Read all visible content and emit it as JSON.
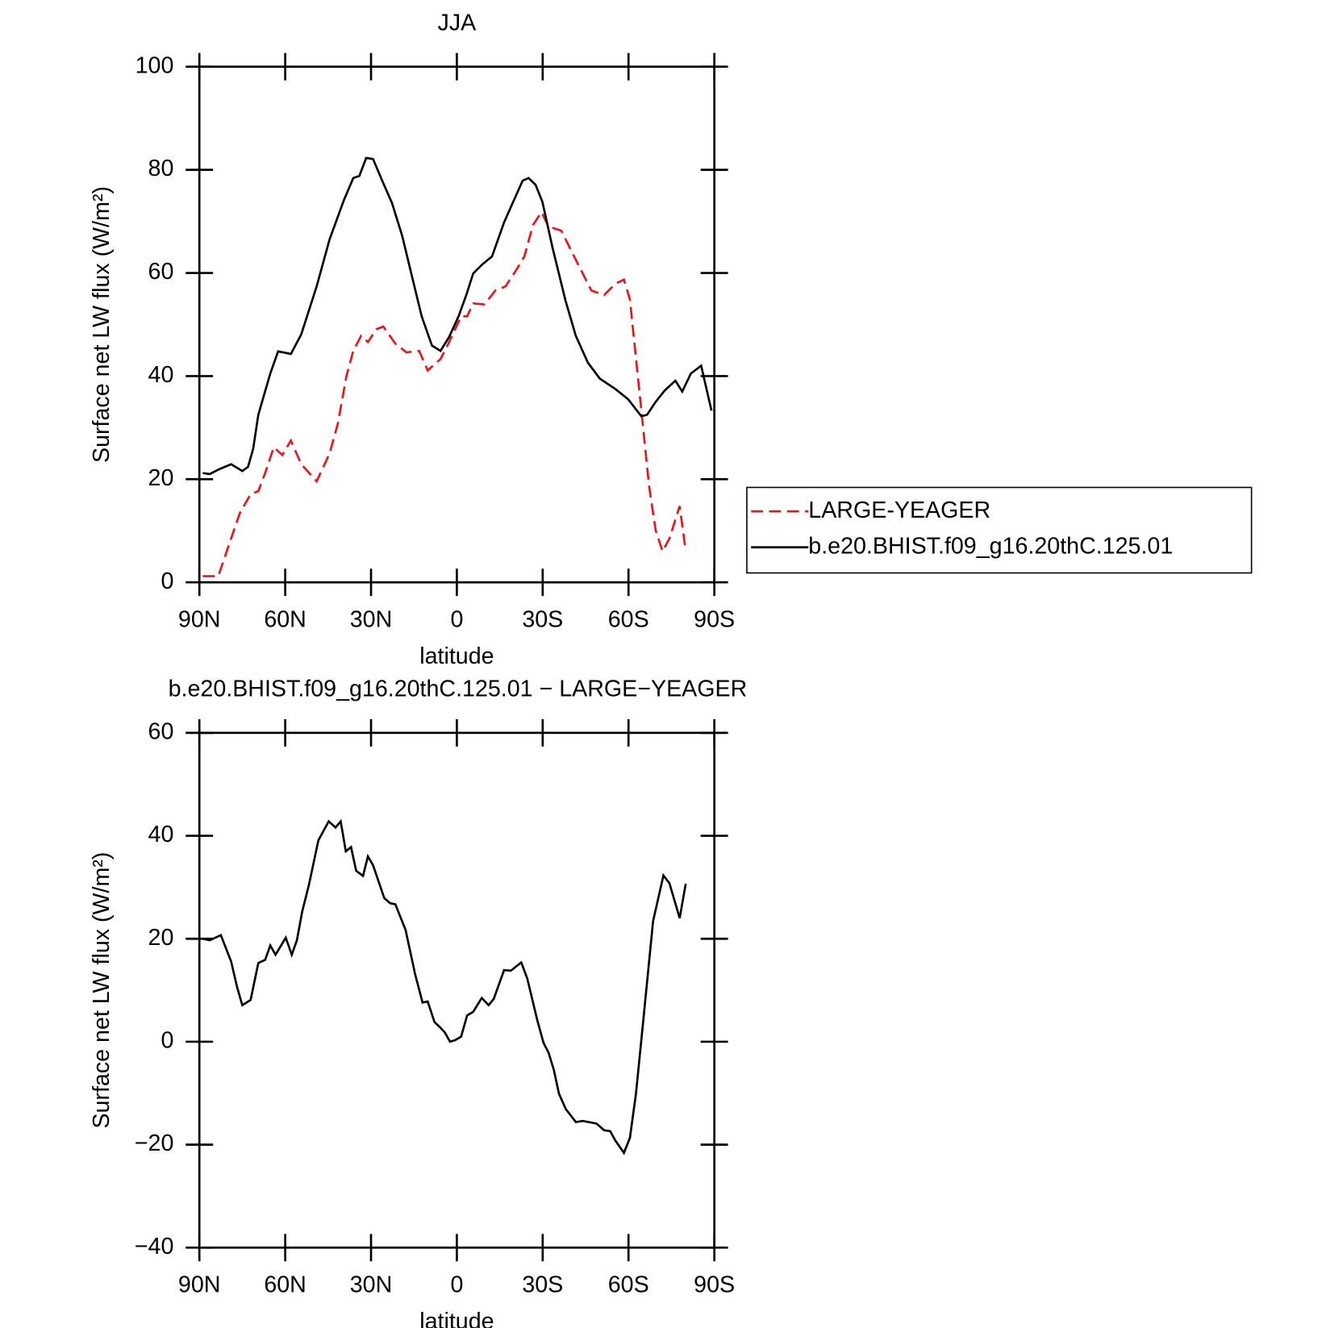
{
  "chart_data": [
    {
      "type": "line",
      "title": "JJA",
      "xlabel": "latitude",
      "ylabel": "Surface net LW flux (W/m²)",
      "xlim": [
        90,
        -90
      ],
      "ylim": [
        0,
        100
      ],
      "xticks": [
        {
          "value": 90,
          "label": "90N"
        },
        {
          "value": 60,
          "label": "60N"
        },
        {
          "value": 30,
          "label": "30N"
        },
        0,
        {
          "value": -30,
          "label": "30S"
        },
        {
          "value": -60,
          "label": "60S"
        },
        {
          "value": -90,
          "label": "90S"
        }
      ],
      "yticks": [
        0,
        20,
        40,
        60,
        80,
        100
      ],
      "legend": "right",
      "series": [
        {
          "name": "LARGE-YEAGER",
          "color": "#e8161b",
          "dashed": true,
          "x": [
            88.8,
            83.4,
            78.9,
            75.9,
            72.1,
            69.4,
            67,
            64,
            61,
            58,
            54.4,
            49,
            44.5,
            41.6,
            38.6,
            36.2,
            33.5,
            31.1,
            28.1,
            25.7,
            21.5,
            17.6,
            13.2,
            10.2,
            5.7,
            2.7,
            -1.5,
            -3.6,
            -5.7,
            -9.6,
            -13.5,
            -17,
            -20.9,
            -23.6,
            -26.6,
            -29.6,
            -32,
            -36.5,
            -41,
            -47,
            -51.5,
            -55.4,
            -58.4,
            -60.5,
            -64.5,
            -67.2,
            -69.5,
            -71.9,
            -74.3,
            -77.9,
            -80
          ],
          "values": [
            1.2,
            1.2,
            8.5,
            13.4,
            17.1,
            17.7,
            21.2,
            26.2,
            24.7,
            27.5,
            22.9,
            19.6,
            25,
            30.8,
            40,
            44.9,
            47.8,
            46.6,
            49.1,
            49.6,
            46.3,
            44.6,
            44.9,
            41.1,
            43.3,
            46.6,
            51.6,
            51.6,
            54.1,
            53.9,
            56.6,
            57.4,
            60.7,
            63.2,
            69.3,
            71.8,
            69,
            68.2,
            63.2,
            56.6,
            55.7,
            57.9,
            58.7,
            54.9,
            33.3,
            18.7,
            10.1,
            6,
            8.5,
            14.8,
            6
          ]
        },
        {
          "name": "b.e20.BHIST.f09_g16.20thC.125.01",
          "color": "#000000",
          "dashed": false,
          "x": [
            88.8,
            86.4,
            82.8,
            78.9,
            75,
            73,
            71.2,
            69.4,
            65.2,
            62.5,
            58,
            54.4,
            49,
            44.5,
            39.5,
            36.2,
            34.1,
            31.7,
            29.3,
            26,
            22.7,
            19.1,
            15.2,
            12.3,
            8.7,
            5.7,
            2.7,
            -0.6,
            -3.3,
            -5.7,
            -9,
            -12.3,
            -16.5,
            -20.1,
            -23,
            -25.1,
            -27.5,
            -29.9,
            -33.5,
            -38,
            -41.6,
            -45.8,
            -50,
            -55.4,
            -59.9,
            -64.5,
            -66.5,
            -69.5,
            -72.8,
            -76.4,
            -78.8,
            -81.8,
            -85.4,
            -89
          ],
          "values": [
            21.2,
            21,
            22,
            22.9,
            21.6,
            22.4,
            25.9,
            32.5,
            40.5,
            44.8,
            44.3,
            48.1,
            57.4,
            66.5,
            74.1,
            78.4,
            78.8,
            82.3,
            82.1,
            77.8,
            73.6,
            67.2,
            58.2,
            51.6,
            45.9,
            44.9,
            47.6,
            51.6,
            55.7,
            59.9,
            61.7,
            63.2,
            69.8,
            74.3,
            77.9,
            78.4,
            77.1,
            73.8,
            64.8,
            54.6,
            47.8,
            42.6,
            39.5,
            37.5,
            35.5,
            32.2,
            32.5,
            35,
            37.3,
            39.1,
            37,
            40.5,
            42,
            33.3
          ]
        }
      ]
    },
    {
      "type": "line",
      "title": "b.e20.BHIST.f09_g16.20thC.125.01 − LARGE−YEAGER",
      "xlabel": "latitude",
      "ylabel": "Surface net LW flux (W/m²)",
      "xlim": [
        90,
        -90
      ],
      "ylim": [
        -40,
        60
      ],
      "xticks": [
        {
          "value": 90,
          "label": "90N"
        },
        {
          "value": 60,
          "label": "60N"
        },
        {
          "value": 30,
          "label": "30N"
        },
        0,
        {
          "value": -30,
          "label": "30S"
        },
        {
          "value": -60,
          "label": "60S"
        },
        {
          "value": -90,
          "label": "90S"
        }
      ],
      "yticks": [
        {
          "value": -40,
          "label": "−40"
        },
        {
          "value": -20,
          "label": "−20"
        },
        0,
        20,
        40,
        60
      ],
      "series": [
        {
          "color": "#000000",
          "dashed": false,
          "x": [
            88.8,
            86.4,
            82.5,
            78.9,
            76.8,
            75,
            72.1,
            69.4,
            67,
            65.2,
            63.4,
            59.8,
            57.7,
            55.9,
            54.1,
            51.7,
            48.4,
            44.8,
            42.4,
            40.6,
            38.8,
            37,
            35.2,
            32.8,
            31.1,
            29.3,
            25.4,
            23.3,
            21.5,
            17.9,
            14.6,
            12,
            10.2,
            7.8,
            5.7,
            4.2,
            2.4,
            0.6,
            -1.5,
            -3.6,
            -5.7,
            -8.7,
            -11.1,
            -12.9,
            -16.5,
            -18.9,
            -22.5,
            -24.6,
            -28.2,
            -30.3,
            -32.1,
            -33.9,
            -35.7,
            -38.1,
            -41.6,
            -44,
            -48.8,
            -51.5,
            -53.6,
            -55.4,
            -58.4,
            -60.5,
            -62.6,
            -65,
            -68.6,
            -72.2,
            -74.3,
            -77.9,
            -80
          ],
          "values": [
            20,
            19.7,
            20.7,
            15.6,
            10.6,
            7.1,
            8.1,
            15.3,
            15.9,
            18.7,
            16.9,
            20.2,
            16.9,
            19.7,
            25.2,
            30.5,
            39.1,
            42.8,
            41.6,
            42.8,
            37,
            37.8,
            33.2,
            32.2,
            36,
            34.3,
            27.9,
            26.9,
            26.7,
            21.7,
            13.1,
            7.6,
            7.8,
            3.8,
            2.7,
            1.8,
            0,
            0.3,
            1,
            5.1,
            5.8,
            8.5,
            7.1,
            8.3,
            13.9,
            13.8,
            15.4,
            12.3,
            4,
            -0.2,
            -2.2,
            -5.5,
            -10.1,
            -13.1,
            -15.6,
            -15.4,
            -15.9,
            -17.2,
            -17.4,
            -19.2,
            -21.6,
            -18.7,
            -10.1,
            3.2,
            23.4,
            32.3,
            30.8,
            24,
            30.7
          ]
        }
      ]
    }
  ]
}
